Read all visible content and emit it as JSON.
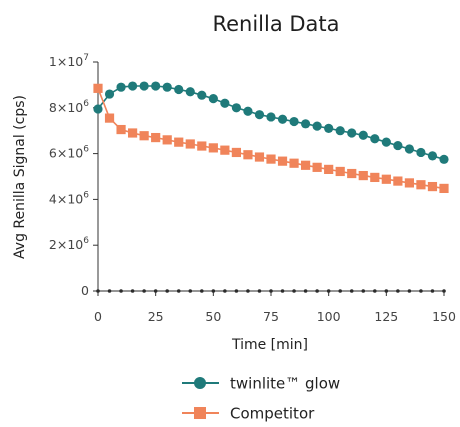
{
  "chart_data": {
    "type": "line",
    "title": "Renilla Data",
    "xlabel": "Time [min]",
    "ylabel": "Avg Renilla Signal (cps)",
    "xlim": [
      0,
      150
    ],
    "ylim": [
      0,
      10000000
    ],
    "x_ticks": [
      0,
      25,
      50,
      75,
      100,
      125,
      150
    ],
    "y_ticks": [
      {
        "value": 0,
        "base": "0",
        "exp": ""
      },
      {
        "value": 2000000,
        "base": "2×10",
        "exp": "6"
      },
      {
        "value": 4000000,
        "base": "4×10",
        "exp": "6"
      },
      {
        "value": 6000000,
        "base": "6×10",
        "exp": "6"
      },
      {
        "value": 8000000,
        "base": "8×10",
        "exp": "6"
      },
      {
        "value": 10000000,
        "base": "1×10",
        "exp": "7"
      }
    ],
    "grid": false,
    "legend_position": "bottom",
    "x": [
      0,
      5,
      10,
      15,
      20,
      25,
      30,
      35,
      40,
      45,
      50,
      55,
      60,
      65,
      70,
      75,
      80,
      85,
      90,
      95,
      100,
      105,
      110,
      115,
      120,
      125,
      130,
      135,
      140,
      145,
      150
    ],
    "series": [
      {
        "name": "twinlite™ glow",
        "color": "#1f7a7a",
        "marker": "circle",
        "values": [
          7950000,
          8600000,
          8900000,
          8950000,
          8950000,
          8950000,
          8900000,
          8800000,
          8700000,
          8550000,
          8400000,
          8200000,
          8000000,
          7850000,
          7700000,
          7600000,
          7500000,
          7400000,
          7300000,
          7200000,
          7100000,
          7000000,
          6900000,
          6800000,
          6650000,
          6500000,
          6350000,
          6200000,
          6050000,
          5900000,
          5750000
        ]
      },
      {
        "name": "Competitor",
        "color": "#f0845a",
        "marker": "square",
        "values": [
          8850000,
          7550000,
          7050000,
          6900000,
          6780000,
          6700000,
          6600000,
          6500000,
          6420000,
          6330000,
          6250000,
          6150000,
          6050000,
          5950000,
          5850000,
          5760000,
          5670000,
          5580000,
          5490000,
          5400000,
          5310000,
          5220000,
          5130000,
          5040000,
          4960000,
          4880000,
          4800000,
          4720000,
          4640000,
          4560000,
          4480000
        ]
      },
      {
        "name": "",
        "color": "#2b2b2b",
        "marker": "dot",
        "values": [
          0,
          0,
          0,
          0,
          0,
          0,
          0,
          0,
          0,
          0,
          0,
          0,
          0,
          0,
          0,
          0,
          0,
          0,
          0,
          0,
          0,
          0,
          0,
          0,
          0,
          0,
          0,
          0,
          0,
          0,
          0
        ]
      }
    ]
  }
}
